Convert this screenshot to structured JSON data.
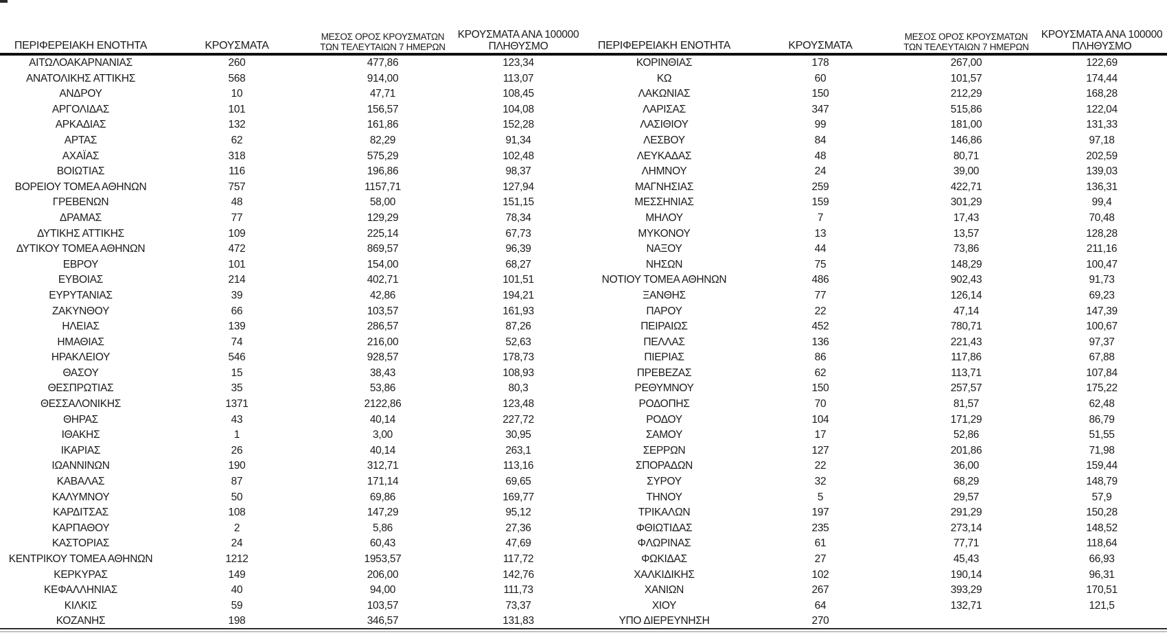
{
  "table": {
    "headers": {
      "region": "ΠΕΡΙΦΕΡΕΙΑΚΗ ΕΝΟΤΗΤΑ",
      "cases": "ΚΡΟΥΣΜΑΤΑ",
      "avg7_line1": "ΜΕΣΟΣ ΟΡΟΣ ΚΡΟΥΣΜΑΤΩΝ",
      "avg7_line2": "ΤΩΝ ΤΕΛΕΥΤΑΙΩΝ 7 ΗΜΕΡΩΝ",
      "per100k_line1": "ΚΡΟΥΣΜΑΤΑ ΑΝΑ 100000",
      "per100k_line2": "ΠΛΗΘΥΣΜΟ"
    },
    "left_rows": [
      [
        "ΑΙΤΩΛΟΑΚΑΡΝΑΝΙΑΣ",
        "260",
        "477,86",
        "123,34"
      ],
      [
        "ΑΝΑΤΟΛΙΚΗΣ ΑΤΤΙΚΗΣ",
        "568",
        "914,00",
        "113,07"
      ],
      [
        "ΑΝΔΡΟΥ",
        "10",
        "47,71",
        "108,45"
      ],
      [
        "ΑΡΓΟΛΙΔΑΣ",
        "101",
        "156,57",
        "104,08"
      ],
      [
        "ΑΡΚΑΔΙΑΣ",
        "132",
        "161,86",
        "152,28"
      ],
      [
        "ΑΡΤΑΣ",
        "62",
        "82,29",
        "91,34"
      ],
      [
        "ΑΧΑΪΑΣ",
        "318",
        "575,29",
        "102,48"
      ],
      [
        "ΒΟΙΩΤΙΑΣ",
        "116",
        "196,86",
        "98,37"
      ],
      [
        "ΒΟΡΕΙΟΥ ΤΟΜΕΑ ΑΘΗΝΩΝ",
        "757",
        "1157,71",
        "127,94"
      ],
      [
        "ΓΡΕΒΕΝΩΝ",
        "48",
        "58,00",
        "151,15"
      ],
      [
        "ΔΡΑΜΑΣ",
        "77",
        "129,29",
        "78,34"
      ],
      [
        "ΔΥΤΙΚΗΣ ΑΤΤΙΚΗΣ",
        "109",
        "225,14",
        "67,73"
      ],
      [
        "ΔΥΤΙΚΟΥ ΤΟΜΕΑ ΑΘΗΝΩΝ",
        "472",
        "869,57",
        "96,39"
      ],
      [
        "ΕΒΡΟΥ",
        "101",
        "154,00",
        "68,27"
      ],
      [
        "ΕΥΒΟΙΑΣ",
        "214",
        "402,71",
        "101,51"
      ],
      [
        "ΕΥΡΥΤΑΝΙΑΣ",
        "39",
        "42,86",
        "194,21"
      ],
      [
        "ΖΑΚΥΝΘΟΥ",
        "66",
        "103,57",
        "161,93"
      ],
      [
        "ΗΛΕΙΑΣ",
        "139",
        "286,57",
        "87,26"
      ],
      [
        "ΗΜΑΘΙΑΣ",
        "74",
        "216,00",
        "52,63"
      ],
      [
        "ΗΡΑΚΛΕΙΟΥ",
        "546",
        "928,57",
        "178,73"
      ],
      [
        "ΘΑΣΟΥ",
        "15",
        "38,43",
        "108,93"
      ],
      [
        "ΘΕΣΠΡΩΤΙΑΣ",
        "35",
        "53,86",
        "80,3"
      ],
      [
        "ΘΕΣΣΑΛΟΝΙΚΗΣ",
        "1371",
        "2122,86",
        "123,48"
      ],
      [
        "ΘΗΡΑΣ",
        "43",
        "40,14",
        "227,72"
      ],
      [
        "ΙΘΑΚΗΣ",
        "1",
        "3,00",
        "30,95"
      ],
      [
        "ΙΚΑΡΙΑΣ",
        "26",
        "40,14",
        "263,1"
      ],
      [
        "ΙΩΑΝΝΙΝΩΝ",
        "190",
        "312,71",
        "113,16"
      ],
      [
        "ΚΑΒΑΛΑΣ",
        "87",
        "171,14",
        "69,65"
      ],
      [
        "ΚΑΛΥΜΝΟΥ",
        "50",
        "69,86",
        "169,77"
      ],
      [
        "ΚΑΡΔΙΤΣΑΣ",
        "108",
        "147,29",
        "95,12"
      ],
      [
        "ΚΑΡΠΑΘΟΥ",
        "2",
        "5,86",
        "27,36"
      ],
      [
        "ΚΑΣΤΟΡΙΑΣ",
        "24",
        "60,43",
        "47,69"
      ],
      [
        "ΚΕΝΤΡΙΚΟΥ ΤΟΜΕΑ ΑΘΗΝΩΝ",
        "1212",
        "1953,57",
        "117,72"
      ],
      [
        "ΚΕΡΚΥΡΑΣ",
        "149",
        "206,00",
        "142,76"
      ],
      [
        "ΚΕΦΑΛΛΗΝΙΑΣ",
        "40",
        "94,00",
        "111,73"
      ],
      [
        "ΚΙΛΚΙΣ",
        "59",
        "103,57",
        "73,37"
      ],
      [
        "ΚΟΖΑΝΗΣ",
        "198",
        "346,57",
        "131,83"
      ]
    ],
    "right_rows": [
      [
        "ΚΟΡΙΝΘΙΑΣ",
        "178",
        "267,00",
        "122,69"
      ],
      [
        "ΚΩ",
        "60",
        "101,57",
        "174,44"
      ],
      [
        "ΛΑΚΩΝΙΑΣ",
        "150",
        "212,29",
        "168,28"
      ],
      [
        "ΛΑΡΙΣΑΣ",
        "347",
        "515,86",
        "122,04"
      ],
      [
        "ΛΑΣΙΘΙΟΥ",
        "99",
        "181,00",
        "131,33"
      ],
      [
        "ΛΕΣΒΟΥ",
        "84",
        "146,86",
        "97,18"
      ],
      [
        "ΛΕΥΚΑΔΑΣ",
        "48",
        "80,71",
        "202,59"
      ],
      [
        "ΛΗΜΝΟΥ",
        "24",
        "39,00",
        "139,03"
      ],
      [
        "ΜΑΓΝΗΣΙΑΣ",
        "259",
        "422,71",
        "136,31"
      ],
      [
        "ΜΕΣΣΗΝΙΑΣ",
        "159",
        "301,29",
        "99,4"
      ],
      [
        "ΜΗΛΟΥ",
        "7",
        "17,43",
        "70,48"
      ],
      [
        "ΜΥΚΟΝΟΥ",
        "13",
        "13,57",
        "128,28"
      ],
      [
        "ΝΑΞΟΥ",
        "44",
        "73,86",
        "211,16"
      ],
      [
        "ΝΗΣΩΝ",
        "75",
        "148,29",
        "100,47"
      ],
      [
        "ΝΟΤΙΟΥ ΤΟΜΕΑ ΑΘΗΝΩΝ",
        "486",
        "902,43",
        "91,73"
      ],
      [
        "ΞΑΝΘΗΣ",
        "77",
        "126,14",
        "69,23"
      ],
      [
        "ΠΑΡΟΥ",
        "22",
        "47,14",
        "147,39"
      ],
      [
        "ΠΕΙΡΑΙΩΣ",
        "452",
        "780,71",
        "100,67"
      ],
      [
        "ΠΕΛΛΑΣ",
        "136",
        "221,43",
        "97,37"
      ],
      [
        "ΠΙΕΡΙΑΣ",
        "86",
        "117,86",
        "67,88"
      ],
      [
        "ΠΡΕΒΕΖΑΣ",
        "62",
        "113,71",
        "107,84"
      ],
      [
        "ΡΕΘΥΜΝΟΥ",
        "150",
        "257,57",
        "175,22"
      ],
      [
        "ΡΟΔΟΠΗΣ",
        "70",
        "81,57",
        "62,48"
      ],
      [
        "ΡΟΔΟΥ",
        "104",
        "171,29",
        "86,79"
      ],
      [
        "ΣΑΜΟΥ",
        "17",
        "52,86",
        "51,55"
      ],
      [
        "ΣΕΡΡΩΝ",
        "127",
        "201,86",
        "71,98"
      ],
      [
        "ΣΠΟΡΑΔΩΝ",
        "22",
        "36,00",
        "159,44"
      ],
      [
        "ΣΥΡΟΥ",
        "32",
        "68,29",
        "148,79"
      ],
      [
        "ΤΗΝΟΥ",
        "5",
        "29,57",
        "57,9"
      ],
      [
        "ΤΡΙΚΑΛΩΝ",
        "197",
        "291,29",
        "150,28"
      ],
      [
        "ΦΘΙΩΤΙΔΑΣ",
        "235",
        "273,14",
        "148,52"
      ],
      [
        "ΦΛΩΡΙΝΑΣ",
        "61",
        "77,71",
        "118,64"
      ],
      [
        "ΦΩΚΙΔΑΣ",
        "27",
        "45,43",
        "66,93"
      ],
      [
        "ΧΑΛΚΙΔΙΚΗΣ",
        "102",
        "190,14",
        "96,31"
      ],
      [
        "ΧΑΝΙΩΝ",
        "267",
        "393,29",
        "170,51"
      ],
      [
        "ΧΙΟΥ",
        "64",
        "132,71",
        "121,5"
      ],
      [
        "ΥΠΟ ΔΙΕΡΕΥΝΗΣΗ",
        "270",
        "",
        ""
      ]
    ],
    "colors": {
      "text": "#1a1a1a",
      "header_rule": "#0f0f0f",
      "bottom_rule": "#2e2e2e"
    }
  }
}
